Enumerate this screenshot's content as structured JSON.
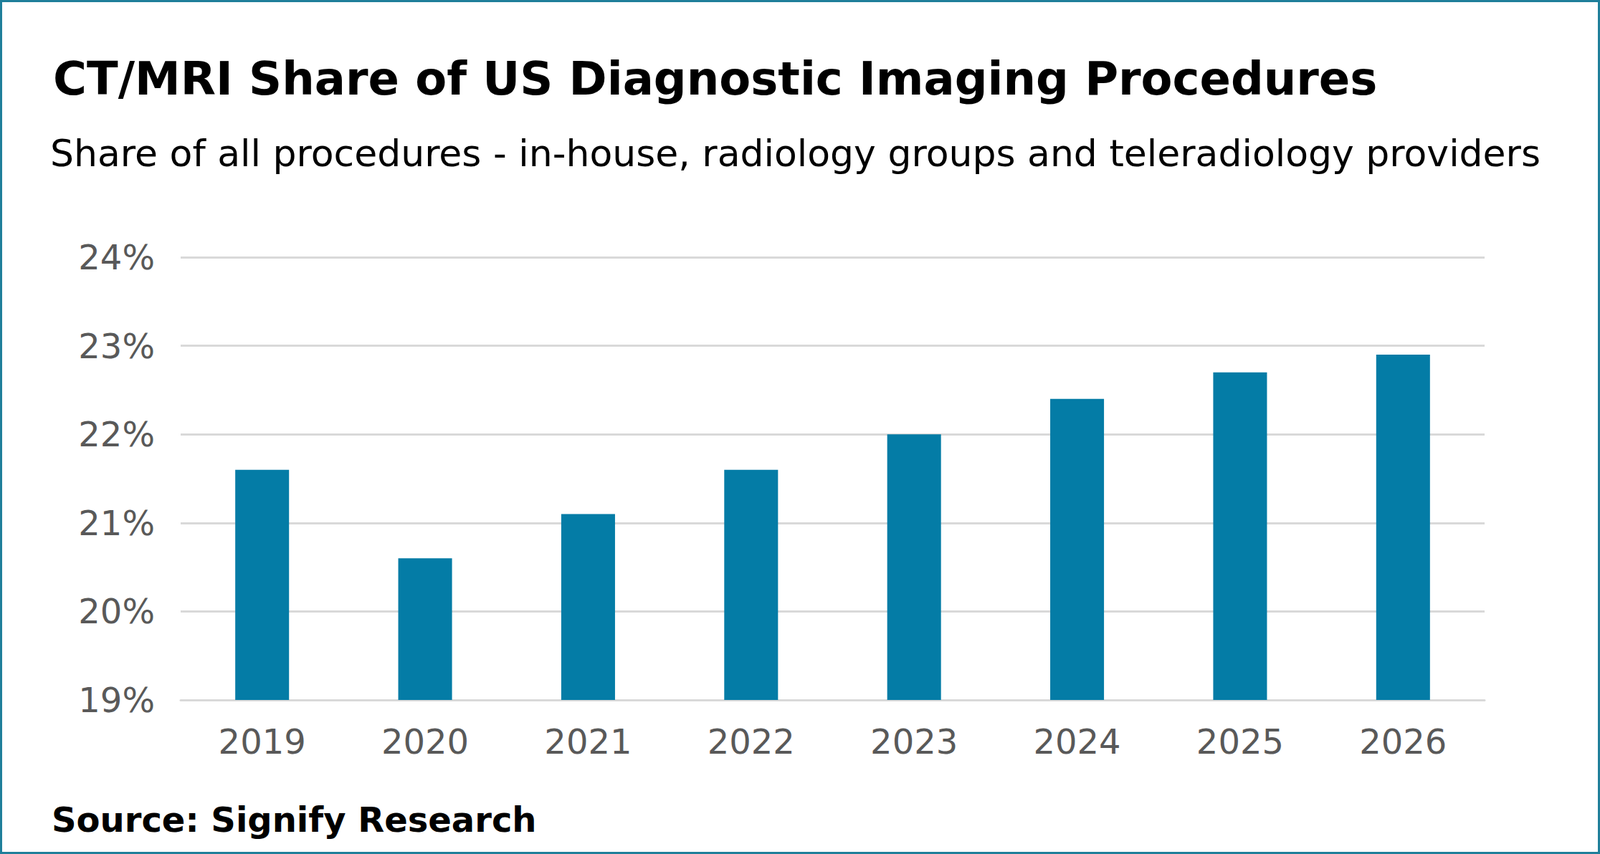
{
  "chart_data": {
    "type": "bar",
    "title": "CT/MRI Share of US Diagnostic Imaging Procedures",
    "subtitle": "Share of all procedures - in-house, radiology groups and teleradiology providers",
    "source": "Source: Signify Research",
    "categories": [
      "2019",
      "2020",
      "2021",
      "2022",
      "2023",
      "2024",
      "2025",
      "2026"
    ],
    "values": [
      21.6,
      20.6,
      21.1,
      21.6,
      22.0,
      22.4,
      22.7,
      22.9
    ],
    "color": "#047ca6",
    "ylim": [
      19,
      24
    ],
    "yticks": [
      {
        "value": 19,
        "label": "19%"
      },
      {
        "value": 20,
        "label": "20%"
      },
      {
        "value": 21,
        "label": "21%"
      },
      {
        "value": 22,
        "label": "22%"
      },
      {
        "value": 23,
        "label": "23%"
      },
      {
        "value": 24,
        "label": "24%"
      }
    ],
    "grid": true
  }
}
